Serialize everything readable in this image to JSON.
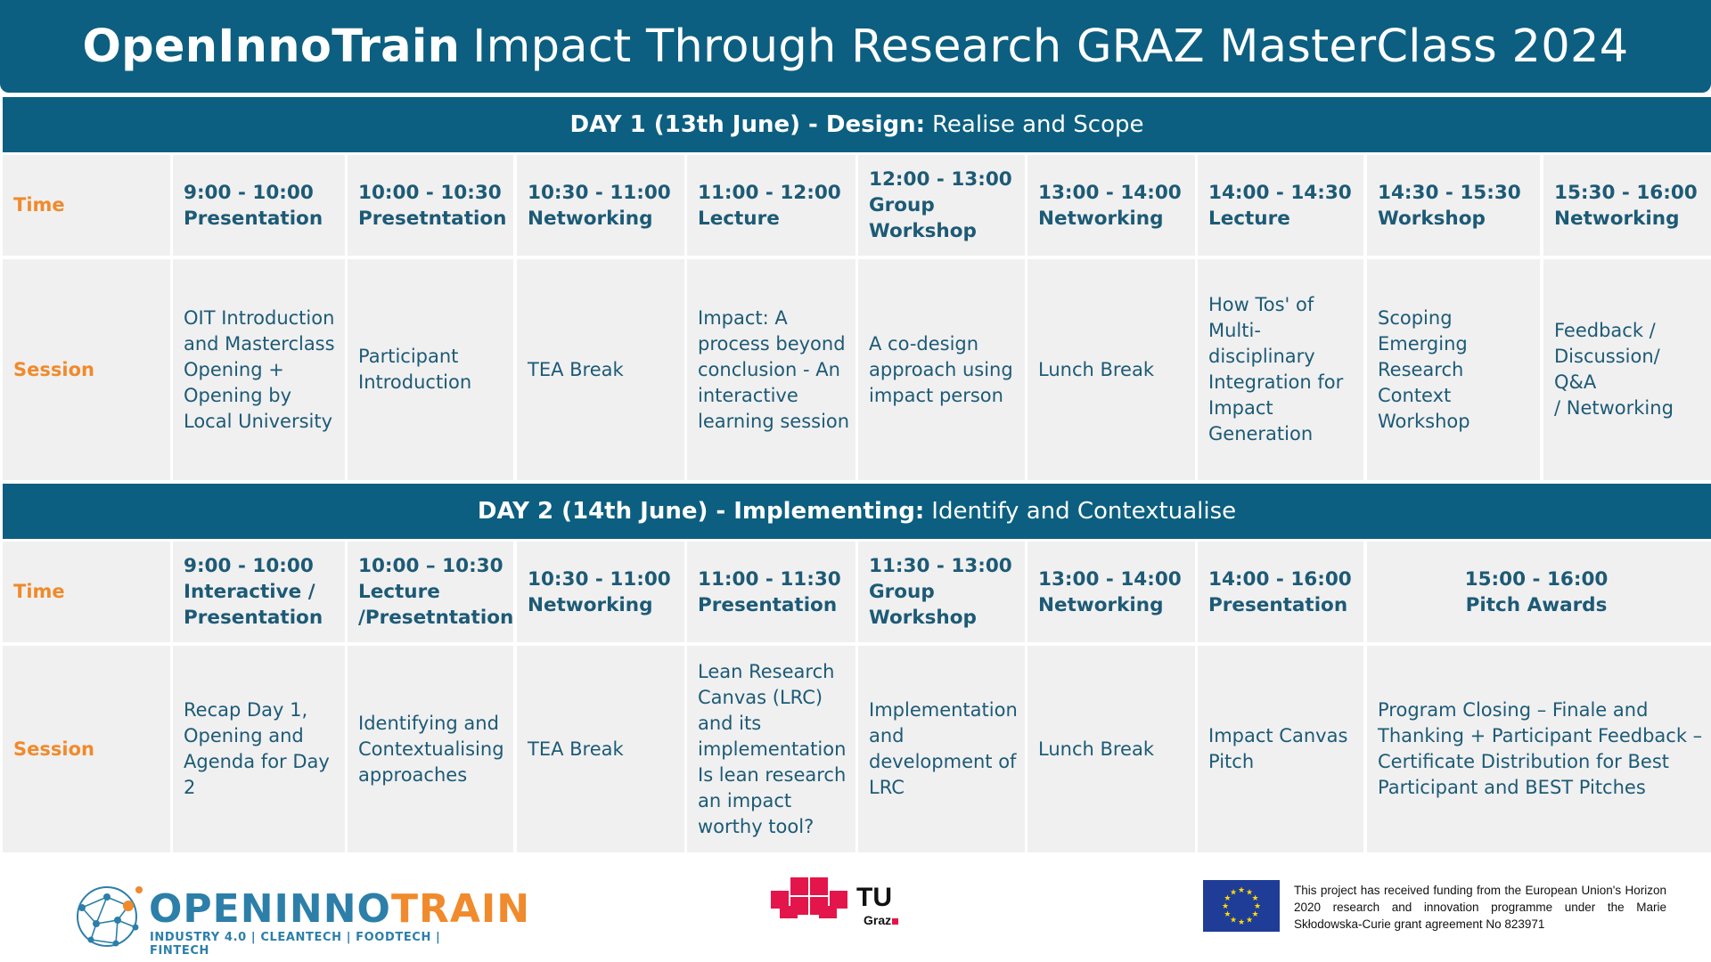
{
  "header": {
    "title_bold": "OpenInnoTrain",
    "title_rest": "Impact Through Research GRAZ MasterClass 2024"
  },
  "day1": {
    "heading_bold": "DAY 1 (13th June) - Design:",
    "heading_light": "Realise and Scope",
    "time_label": "Time",
    "session_label": "Session",
    "times": [
      "9:00 - 10:00\nPresentation",
      "10:00 - 10:30\nPresetntation",
      "10:30 - 11:00\nNetworking",
      "11:00 - 12:00\nLecture",
      "12:00 - 13:00\nGroup\nWorkshop",
      "13:00 - 14:00\nNetworking",
      "14:00 - 14:30\nLecture",
      "14:30 - 15:30\nWorkshop",
      "15:30 - 16:00\nNetworking"
    ],
    "sessions": [
      "OIT Introduction\nand Masterclass\nOpening +\nOpening by\nLocal University",
      "Participant\nIntroduction",
      "TEA Break",
      "Impact: A\nprocess beyond\nconclusion - An\ninteractive\nlearning session",
      "A co-design\napproach using\nimpact person",
      "Lunch Break",
      "How Tos' of\nMulti-\ndisciplinary\nIntegration for\nImpact\nGeneration",
      "Scoping\nEmerging\nResearch\nContext\nWorkshop",
      "Feedback /\nDiscussion/ Q&A\n/ Networking"
    ]
  },
  "day2": {
    "heading_bold": "DAY 2 (14th June) - Implementing:",
    "heading_light": "Identify and Contextualise",
    "time_label": "Time",
    "session_label": "Session",
    "times": [
      "9:00 - 10:00\nInteractive /\nPresentation",
      "10:00 – 10:30\nLecture\n/Presetntation",
      "10:30 - 11:00\nNetworking",
      "11:00 - 11:30\nPresentation",
      "11:30 - 13:00\nGroup\nWorkshop",
      "13:00 - 14:00\nNetworking",
      "14:00 - 16:00\nPresentation",
      "15:00 - 16:00\nPitch Awards"
    ],
    "sessions": [
      "Recap Day 1,\nOpening and\nAgenda for Day 2",
      "Identifying and\nContextualising\napproaches",
      "TEA Break",
      "Lean Research\nCanvas (LRC)\nand its\nimplementation\nIs lean research\nan impact\nworthy tool?",
      "Implementation\nand\ndevelopment of\nLRC",
      "Lunch Break",
      "Impact Canvas\nPitch",
      "Program Closing – Finale and\nThanking + Participant Feedback –\nCertificate Distribution for Best\nParticipant and BEST Pitches"
    ]
  },
  "footer": {
    "oit_logo_part1": "OPENINNO",
    "oit_logo_part2": "TRAIN",
    "oit_tagline": "INDUSTRY 4.0 | CLEANTECH | FOODTECH | FINTECH",
    "tu_logo_text": "TU",
    "tu_logo_sub": "Graz",
    "funding_text": "This project has received funding from the European Union's Horizon 2020 research and innovation programme under the Marie Skłodowska-Curie grant agreement No 823971"
  },
  "colors": {
    "primary": "#0c5f80",
    "accent": "#f08a2c",
    "cell_bg": "#f0f0f0",
    "tu_red": "#e4154b"
  }
}
